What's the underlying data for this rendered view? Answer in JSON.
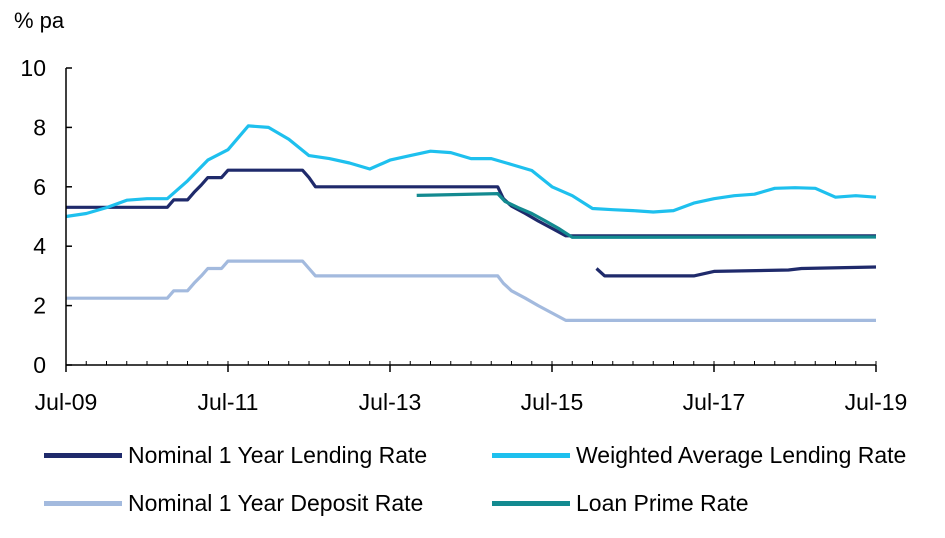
{
  "chart_data": {
    "type": "line",
    "ylabel": "% pa",
    "ylim": [
      0,
      10
    ],
    "yticks": [
      "0",
      "2",
      "4",
      "6",
      "8",
      "10"
    ],
    "xlim": [
      2009.5,
      2019.5
    ],
    "xticks": [
      {
        "label": "Jul-09",
        "x": 2009.5
      },
      {
        "label": "Jul-11",
        "x": 2011.5
      },
      {
        "label": "Jul-13",
        "x": 2013.5
      },
      {
        "label": "Jul-15",
        "x": 2015.5
      },
      {
        "label": "Jul-17",
        "x": 2017.5
      },
      {
        "label": "Jul-19",
        "x": 2019.5
      }
    ],
    "series": [
      {
        "name": "Nominal 1 Year Lending Rate",
        "color": "#1f2a6b",
        "points": [
          [
            2009.5,
            5.31
          ],
          [
            2010.75,
            5.31
          ],
          [
            2010.83,
            5.56
          ],
          [
            2011.0,
            5.56
          ],
          [
            2011.08,
            5.81
          ],
          [
            2011.17,
            6.06
          ],
          [
            2011.25,
            6.31
          ],
          [
            2011.42,
            6.31
          ],
          [
            2011.5,
            6.56
          ],
          [
            2012.42,
            6.56
          ],
          [
            2012.5,
            6.31
          ],
          [
            2012.58,
            6.0
          ],
          [
            2014.83,
            6.0
          ],
          [
            2014.9,
            5.6
          ],
          [
            2015.0,
            5.35
          ],
          [
            2015.17,
            5.1
          ],
          [
            2015.33,
            4.85
          ],
          [
            2015.5,
            4.6
          ],
          [
            2015.67,
            4.35
          ],
          [
            2019.5,
            4.35
          ]
        ]
      },
      {
        "name": "Weighted Average Lending Rate",
        "color": "#1ec0ee",
        "points": [
          [
            2009.5,
            5.0
          ],
          [
            2009.75,
            5.1
          ],
          [
            2010.0,
            5.3
          ],
          [
            2010.25,
            5.55
          ],
          [
            2010.5,
            5.6
          ],
          [
            2010.75,
            5.6
          ],
          [
            2011.0,
            6.2
          ],
          [
            2011.25,
            6.9
          ],
          [
            2011.5,
            7.25
          ],
          [
            2011.75,
            8.05
          ],
          [
            2012.0,
            8.0
          ],
          [
            2012.25,
            7.6
          ],
          [
            2012.5,
            7.05
          ],
          [
            2012.75,
            6.95
          ],
          [
            2013.0,
            6.8
          ],
          [
            2013.25,
            6.6
          ],
          [
            2013.5,
            6.9
          ],
          [
            2013.75,
            7.05
          ],
          [
            2014.0,
            7.2
          ],
          [
            2014.25,
            7.15
          ],
          [
            2014.5,
            6.95
          ],
          [
            2014.75,
            6.95
          ],
          [
            2015.0,
            6.75
          ],
          [
            2015.25,
            6.55
          ],
          [
            2015.5,
            6.0
          ],
          [
            2015.75,
            5.7
          ],
          [
            2016.0,
            5.27
          ],
          [
            2016.25,
            5.23
          ],
          [
            2016.5,
            5.2
          ],
          [
            2016.75,
            5.15
          ],
          [
            2017.0,
            5.2
          ],
          [
            2017.25,
            5.45
          ],
          [
            2017.5,
            5.6
          ],
          [
            2017.75,
            5.7
          ],
          [
            2018.0,
            5.75
          ],
          [
            2018.25,
            5.95
          ],
          [
            2018.5,
            5.97
          ],
          [
            2018.75,
            5.95
          ],
          [
            2019.0,
            5.65
          ],
          [
            2019.25,
            5.7
          ],
          [
            2019.5,
            5.65
          ]
        ]
      },
      {
        "name": "Nominal 1 Year Deposit Rate",
        "color": "#a3bade",
        "points": [
          [
            2009.5,
            2.25
          ],
          [
            2010.75,
            2.25
          ],
          [
            2010.83,
            2.5
          ],
          [
            2011.0,
            2.5
          ],
          [
            2011.08,
            2.75
          ],
          [
            2011.17,
            3.0
          ],
          [
            2011.25,
            3.25
          ],
          [
            2011.42,
            3.25
          ],
          [
            2011.5,
            3.5
          ],
          [
            2012.42,
            3.5
          ],
          [
            2012.5,
            3.25
          ],
          [
            2012.58,
            3.0
          ],
          [
            2014.83,
            3.0
          ],
          [
            2014.9,
            2.75
          ],
          [
            2015.0,
            2.5
          ],
          [
            2015.17,
            2.25
          ],
          [
            2015.33,
            2.0
          ],
          [
            2015.5,
            1.75
          ],
          [
            2015.67,
            1.5
          ],
          [
            2019.5,
            1.5
          ]
        ]
      },
      {
        "name": "Loan Prime Rate",
        "color": "#138a90",
        "points": [
          [
            2013.83,
            5.71
          ],
          [
            2014.0,
            5.72
          ],
          [
            2014.83,
            5.77
          ],
          [
            2014.92,
            5.51
          ],
          [
            2015.08,
            5.3
          ],
          [
            2015.25,
            5.1
          ],
          [
            2015.42,
            4.85
          ],
          [
            2015.58,
            4.6
          ],
          [
            2015.75,
            4.3
          ],
          [
            2019.5,
            4.31
          ]
        ]
      },
      {
        "name": "Nominal 1 Year Lending Rate (segment 2)",
        "color": "#1f2a6b",
        "in_legend": false,
        "points": [
          [
            2016.05,
            3.25
          ],
          [
            2016.15,
            3.0
          ],
          [
            2017.25,
            3.0
          ],
          [
            2017.5,
            3.15
          ],
          [
            2018.42,
            3.2
          ],
          [
            2018.58,
            3.25
          ],
          [
            2019.5,
            3.3
          ]
        ]
      }
    ]
  },
  "legend": {
    "items": [
      {
        "label": "Nominal 1 Year Lending Rate",
        "color": "#1f2a6b"
      },
      {
        "label": "Weighted Average Lending Rate",
        "color": "#1ec0ee"
      },
      {
        "label": "Nominal 1 Year Deposit Rate",
        "color": "#a3bade"
      },
      {
        "label": "Loan Prime Rate",
        "color": "#138a90"
      }
    ]
  }
}
